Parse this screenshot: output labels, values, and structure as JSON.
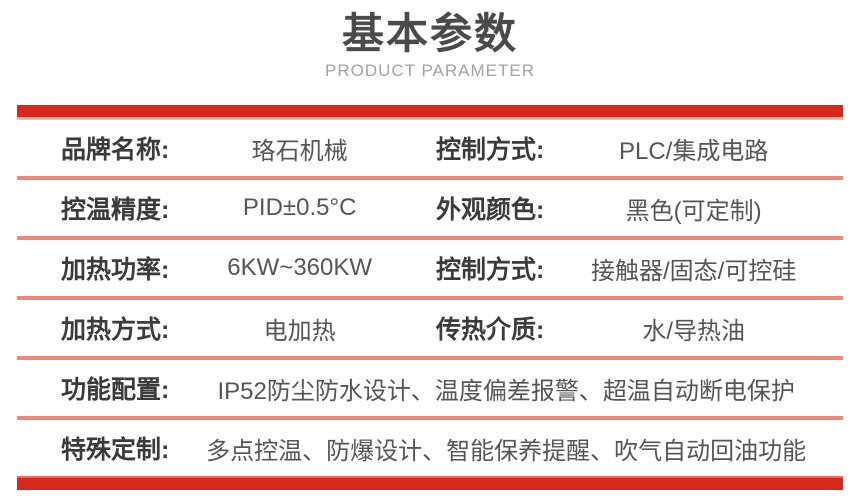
{
  "header": {
    "title": "基本参数",
    "subtitle": "PRODUCT PARAMETER"
  },
  "colors": {
    "accent_red": "#d7281d",
    "divider_pink": "#f0897c",
    "title_gray": "#4a4a4a",
    "subtitle_gray": "#a3a3a3",
    "label_dark": "#3b3b3b",
    "value_gray": "#565656"
  },
  "table": {
    "rows_two_col": [
      {
        "left": {
          "label": "品牌名称:",
          "value": "珞石机械"
        },
        "right": {
          "label": "控制方式:",
          "value": "PLC/集成电路"
        }
      },
      {
        "left": {
          "label": "控温精度:",
          "value": "PID±0.5°C"
        },
        "right": {
          "label": "外观颜色:",
          "value": "黑色(可定制)"
        }
      },
      {
        "left": {
          "label": "加热功率:",
          "value": "6KW~360KW"
        },
        "right": {
          "label": "控制方式:",
          "value": "接触器/固态/可控硅"
        }
      },
      {
        "left": {
          "label": "加热方式:",
          "value": "电加热"
        },
        "right": {
          "label": "传热介质:",
          "value": "水/导热油"
        }
      }
    ],
    "rows_full": [
      {
        "label": "功能配置:",
        "value": "IP52防尘防水设计、温度偏差报警、超温自动断电保护"
      },
      {
        "label": "特殊定制:",
        "value": "多点控温、防爆设计、智能保养提醒、吹气自动回油功能"
      }
    ]
  }
}
